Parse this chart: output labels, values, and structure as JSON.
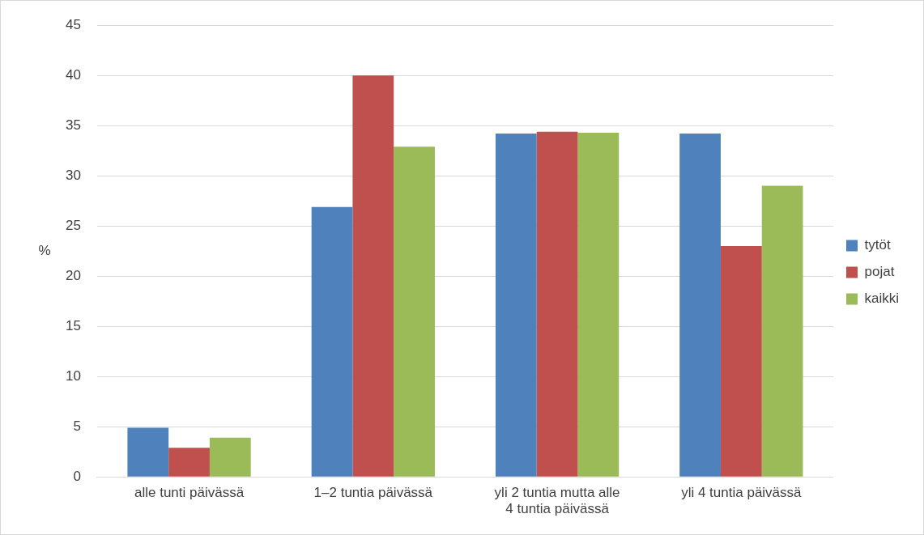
{
  "chart_data": {
    "type": "bar",
    "ylabel": "%",
    "categories": [
      "alle tunti päivässä",
      "1–2 tuntia päivässä",
      "yli 2 tuntia mutta alle 4 tuntia päivässä",
      "yli 4 tuntia päivässä"
    ],
    "series": [
      {
        "name": "tytöt",
        "color": "#4f81bd",
        "values": [
          4.9,
          26.9,
          34.2,
          34.2
        ]
      },
      {
        "name": "pojat",
        "color": "#c0504d",
        "values": [
          2.9,
          40.0,
          34.4,
          23.0
        ]
      },
      {
        "name": "kaikki",
        "color": "#9bbb59",
        "values": [
          3.9,
          32.9,
          34.3,
          29.0
        ]
      }
    ],
    "ylim": [
      0,
      45
    ],
    "yticks": [
      0,
      5,
      10,
      15,
      20,
      25,
      30,
      35,
      40,
      45
    ],
    "grid": "y",
    "legend": "right"
  }
}
